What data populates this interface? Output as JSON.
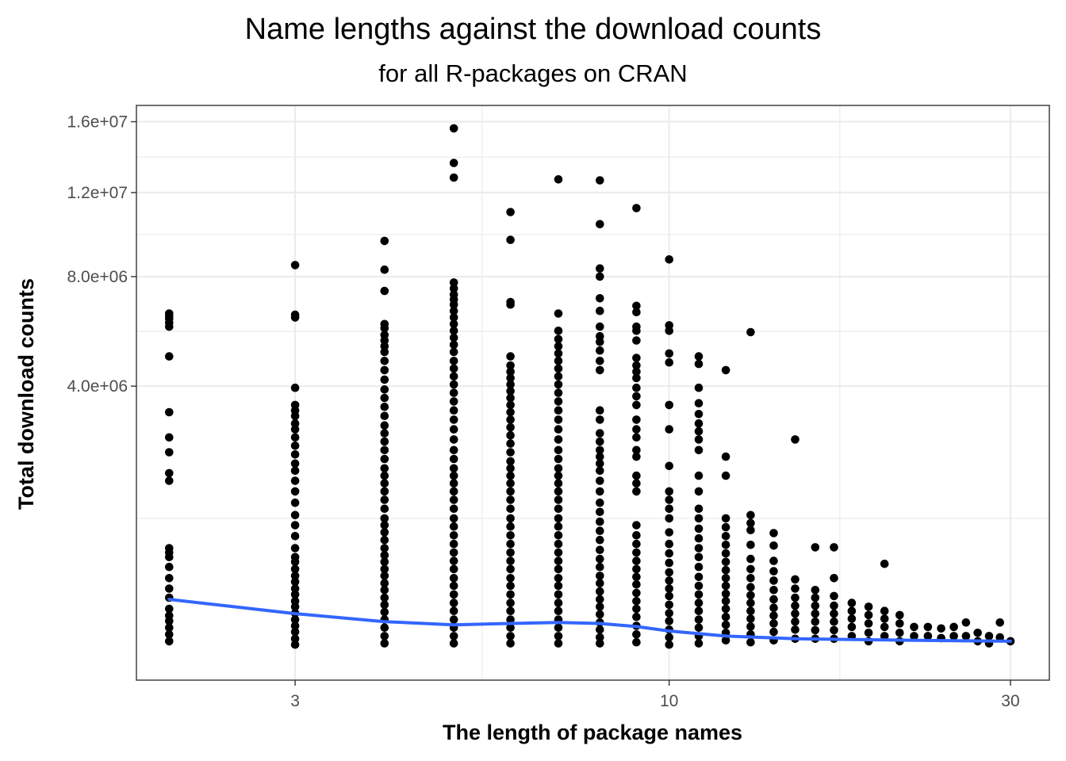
{
  "chart_data": {
    "type": "scatter",
    "title": "Name lengths against the download counts",
    "subtitle": "for all R-packages on CRAN",
    "xlabel": "The length of package names",
    "ylabel": "Total download counts",
    "x_scale": "log10",
    "y_scale": "sqrt",
    "xlim": [
      1.8,
      34
    ],
    "ylim": [
      -50000,
      17000000
    ],
    "x_ticks": [
      3,
      10,
      30
    ],
    "x_tick_labels": [
      "3",
      "10",
      "30"
    ],
    "y_ticks": [
      4000000,
      8000000,
      12000000,
      16000000
    ],
    "y_tick_labels": [
      "4.0e+06",
      "8.0e+06",
      "1.2e+07",
      "1.6e+07"
    ],
    "grid": true,
    "colors": {
      "points": "#000000",
      "smooth": "#3366FF",
      "grid": "#ebebeb",
      "panel_border": "#333333"
    },
    "points": [
      {
        "x": 2,
        "ys": [
          6500000,
          6400000,
          6300000,
          6150000,
          6000000,
          4950000,
          3250000,
          2600000,
          2250000,
          1800000,
          1650000,
          600000,
          550000,
          500000,
          400000,
          300000,
          220000,
          160000,
          100000,
          70000,
          50000,
          30000,
          15000,
          5000
        ]
      },
      {
        "x": 3,
        "ys": [
          8500000,
          6450000,
          6350000,
          3950000,
          3450000,
          3300000,
          3150000,
          2950000,
          2800000,
          2600000,
          2400000,
          2200000,
          2000000,
          1850000,
          1650000,
          1450000,
          1250000,
          1050000,
          900000,
          750000,
          600000,
          500000,
          450000,
          380000,
          320000,
          270000,
          220000,
          180000,
          140000,
          110000,
          80000,
          55000,
          35000,
          20000,
          8000,
          2000
        ]
      },
      {
        "x": 4,
        "ys": [
          9600000,
          8300000,
          7400000,
          6100000,
          5950000,
          5700000,
          5500000,
          5300000,
          5100000,
          4800000,
          4500000,
          4200000,
          3900000,
          3650000,
          3400000,
          3150000,
          2900000,
          2700000,
          2500000,
          2300000,
          2100000,
          1900000,
          1750000,
          1600000,
          1450000,
          1300000,
          1150000,
          1000000,
          900000,
          800000,
          700000,
          600000,
          520000,
          450000,
          380000,
          320000,
          260000,
          210000,
          160000,
          120000,
          85000,
          55000,
          30000,
          12000,
          3000
        ]
      },
      {
        "x": 5,
        "ys": [
          15600000,
          13600000,
          12800000,
          7750000,
          7500000,
          7250000,
          7050000,
          6850000,
          6600000,
          6350000,
          6100000,
          5850000,
          5600000,
          5350000,
          5100000,
          4800000,
          4550000,
          4300000,
          4050000,
          3800000,
          3550000,
          3300000,
          3050000,
          2800000,
          2550000,
          2300000,
          2100000,
          1900000,
          1750000,
          1600000,
          1450000,
          1300000,
          1150000,
          1000000,
          880000,
          760000,
          650000,
          550000,
          460000,
          380000,
          300000,
          240000,
          180000,
          130000,
          90000,
          55000,
          30000,
          12000,
          3000
        ]
      },
      {
        "x": 6,
        "ys": [
          11000000,
          9650000,
          6950000,
          6850000,
          4950000,
          4650000,
          4450000,
          4250000,
          4050000,
          3850000,
          3650000,
          3450000,
          3250000,
          3050000,
          2850000,
          2650000,
          2450000,
          2250000,
          2050000,
          1900000,
          1750000,
          1600000,
          1450000,
          1300000,
          1150000,
          1000000,
          880000,
          760000,
          650000,
          550000,
          460000,
          380000,
          300000,
          240000,
          180000,
          130000,
          90000,
          55000,
          30000,
          12000,
          3000
        ]
      },
      {
        "x": 7,
        "ys": [
          12700000,
          6500000,
          5850000,
          5550000,
          5300000,
          5050000,
          4800000,
          4550000,
          4300000,
          4050000,
          3800000,
          3550000,
          3300000,
          3050000,
          2800000,
          2550000,
          2300000,
          2100000,
          1900000,
          1750000,
          1600000,
          1450000,
          1300000,
          1150000,
          1000000,
          880000,
          760000,
          650000,
          550000,
          460000,
          380000,
          300000,
          240000,
          180000,
          130000,
          90000,
          55000,
          30000,
          12000,
          3000
        ]
      },
      {
        "x": 8,
        "ys": [
          12650000,
          10400000,
          8350000,
          8000000,
          7100000,
          6600000,
          6000000,
          5650000,
          5450000,
          5150000,
          4800000,
          4500000,
          3300000,
          3050000,
          2700000,
          2500000,
          2300000,
          2150000,
          2000000,
          1850000,
          1650000,
          1450000,
          1250000,
          1100000,
          950000,
          820000,
          700000,
          580000,
          480000,
          400000,
          320000,
          260000,
          200000,
          150000,
          110000,
          75000,
          45000,
          25000,
          10000,
          3000
        ]
      },
      {
        "x": 9,
        "ys": [
          11200000,
          6800000,
          6550000,
          6000000,
          5850000,
          5500000,
          4900000,
          4650000,
          4450000,
          4250000,
          3950000,
          3700000,
          3450000,
          3050000,
          2800000,
          2600000,
          2300000,
          2150000,
          1750000,
          1600000,
          1450000,
          900000,
          760000,
          650000,
          550000,
          460000,
          380000,
          310000,
          250000,
          190000,
          140000,
          100000,
          65000,
          35000,
          15000,
          4000
        ]
      },
      {
        "x": 10,
        "ys": [
          8750000,
          6050000,
          5850000,
          5050000,
          4750000,
          3450000,
          2800000,
          1950000,
          1450000,
          1300000,
          1150000,
          1000000,
          800000,
          650000,
          540000,
          440000,
          350000,
          280000,
          220000,
          170000,
          120000,
          80000,
          50000,
          25000,
          10000,
          2000
        ]
      },
      {
        "x": 11,
        "ys": [
          4950000,
          4700000,
          3950000,
          3500000,
          3200000,
          2950000,
          2750000,
          2550000,
          2300000,
          1750000,
          1450000,
          1150000,
          1000000,
          850000,
          720000,
          600000,
          500000,
          400000,
          310000,
          240000,
          180000,
          130000,
          90000,
          55000,
          30000,
          12000,
          3000
        ]
      },
      {
        "x": 12,
        "ys": [
          4500000,
          2150000,
          1750000,
          1000000,
          870000,
          750000,
          640000,
          540000,
          450000,
          370000,
          300000,
          240000,
          185000,
          140000,
          100000,
          65000,
          38000,
          18000,
          6000
        ]
      },
      {
        "x": 13,
        "ys": [
          5800000,
          1050000,
          930000,
          830000,
          640000,
          480000,
          380000,
          300000,
          230000,
          175000,
          130000,
          90000,
          58000,
          33000,
          15000,
          4000
        ]
      },
      {
        "x": 14,
        "ys": [
          790000,
          630000,
          460000,
          360000,
          280000,
          210000,
          150000,
          105000,
          70000,
          42000,
          20000,
          6000
        ]
      },
      {
        "x": 15,
        "ys": [
          2550000,
          290000,
          220000,
          160000,
          115000,
          78000,
          48000,
          25000,
          8000
        ]
      },
      {
        "x": 16,
        "ys": [
          610000,
          210000,
          160000,
          115000,
          78000,
          48000,
          24000,
          8000
        ]
      },
      {
        "x": 17,
        "ys": [
          610000,
          300000,
          170000,
          115000,
          78000,
          48000,
          24000,
          8000
        ]
      },
      {
        "x": 18,
        "ys": [
          130000,
          90000,
          58000,
          32000,
          12000
        ]
      },
      {
        "x": 19,
        "ys": [
          110000,
          72000,
          42000,
          18000,
          5000
        ]
      },
      {
        "x": 20,
        "ys": [
          430000,
          90000,
          58000,
          32000,
          12000
        ]
      },
      {
        "x": 21,
        "ys": [
          72000,
          42000,
          18000,
          5000
        ]
      },
      {
        "x": 22,
        "ys": [
          32000,
          12000
        ]
      },
      {
        "x": 23,
        "ys": [
          32000,
          12000
        ]
      },
      {
        "x": 24,
        "ys": [
          28000,
          9000
        ]
      },
      {
        "x": 25,
        "ys": [
          32000,
          12000
        ]
      },
      {
        "x": 26,
        "ys": [
          45000,
          12000
        ]
      },
      {
        "x": 27,
        "ys": [
          18000,
          5000
        ]
      },
      {
        "x": 28,
        "ys": [
          12000,
          3000
        ]
      },
      {
        "x": 29,
        "ys": [
          45000,
          10000
        ]
      },
      {
        "x": 30,
        "ys": [
          5000
        ]
      }
    ],
    "smooth": {
      "x": [
        2,
        3,
        4,
        5,
        6,
        7,
        8,
        9,
        10,
        12,
        15,
        20,
        25,
        30
      ],
      "y": [
        150000,
        78000,
        48000,
        38000,
        42000,
        45000,
        42000,
        33000,
        22000,
        12000,
        8000,
        6500,
        5500,
        5000
      ]
    }
  }
}
